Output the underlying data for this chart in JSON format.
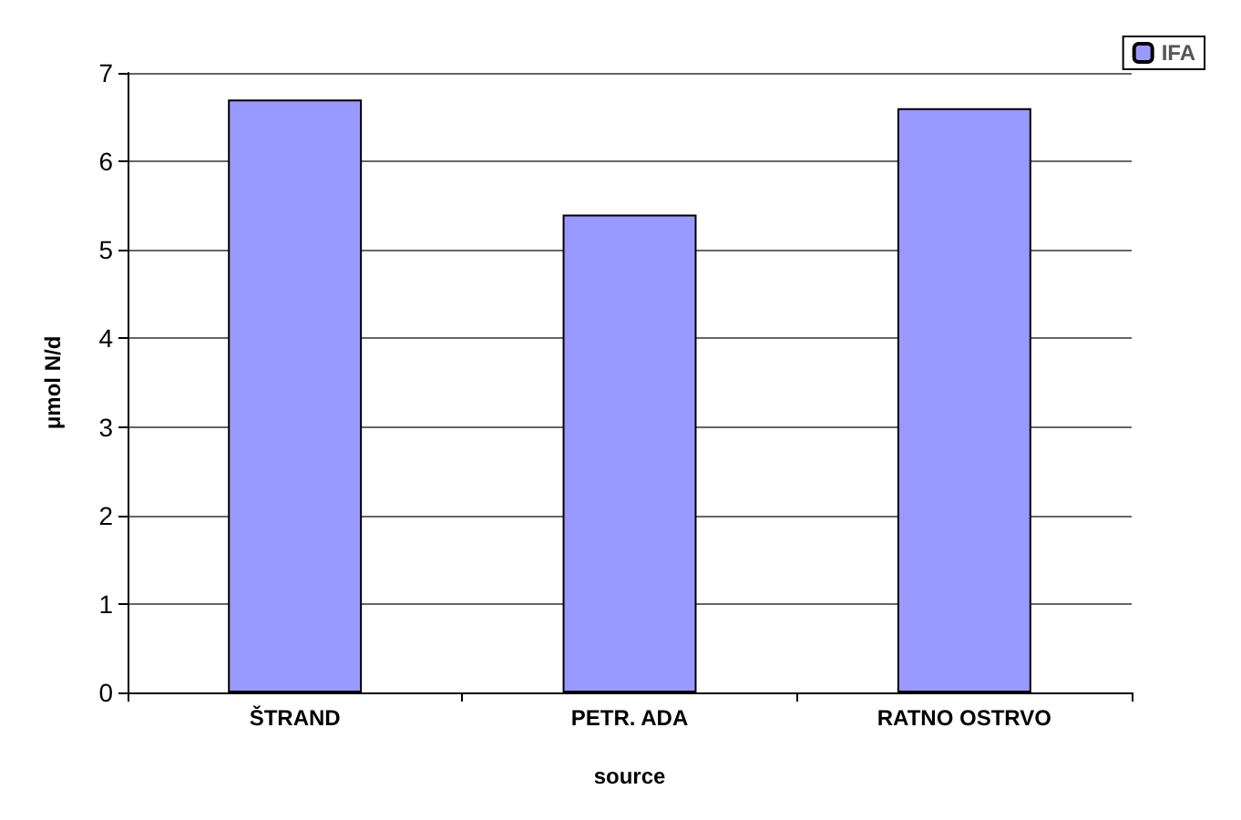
{
  "chart_data": {
    "type": "bar",
    "xlabel": "source",
    "ylabel": "μmol N/d",
    "categories": [
      "ŠTRAND",
      "PETR. ADA",
      "RATNO OSTRVO"
    ],
    "series": [
      {
        "name": "IFA",
        "color": "#9999ff",
        "values": [
          6.7,
          5.4,
          6.6
        ]
      }
    ],
    "ylim": [
      0,
      7
    ],
    "yticks": [
      0,
      1,
      2,
      3,
      4,
      5,
      6,
      7
    ],
    "grid": "y",
    "legend": "top right"
  }
}
